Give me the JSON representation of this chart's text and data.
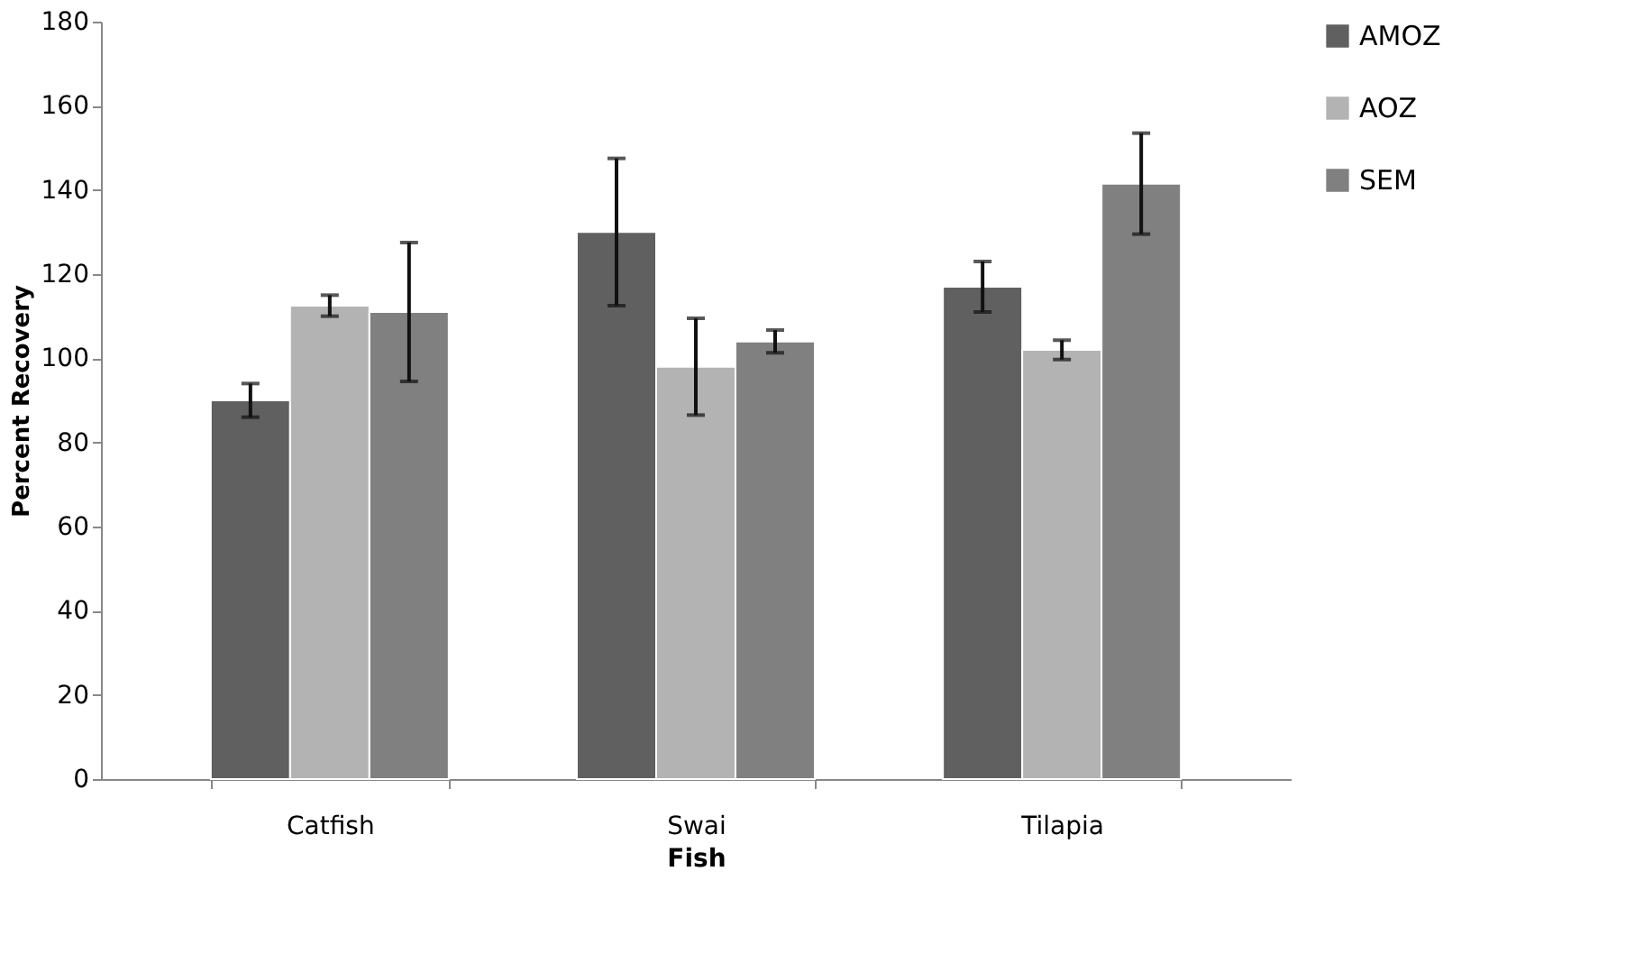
{
  "chart_data": {
    "type": "bar",
    "xlabel": "Fish",
    "ylabel": "Percent Recovery",
    "categories": [
      "Catfish",
      "Swai",
      "Tilapia"
    ],
    "series": [
      {
        "name": "AMOZ",
        "color": "#606060",
        "values": [
          90,
          130,
          117
        ],
        "errors": [
          4,
          17.5,
          6
        ]
      },
      {
        "name": "AOZ",
        "color": "#b3b3b3",
        "values": [
          112.5,
          98,
          102
        ],
        "errors": [
          2.5,
          11.5,
          2.3
        ]
      },
      {
        "name": "SEM",
        "color": "#808080",
        "values": [
          111,
          104,
          141.5
        ],
        "errors": [
          16.5,
          2.7,
          12
        ]
      }
    ],
    "ylim": [
      0,
      180
    ],
    "yticks": [
      0,
      20,
      40,
      60,
      80,
      100,
      120,
      140,
      160,
      180
    ],
    "grid": false,
    "legend": "right"
  }
}
